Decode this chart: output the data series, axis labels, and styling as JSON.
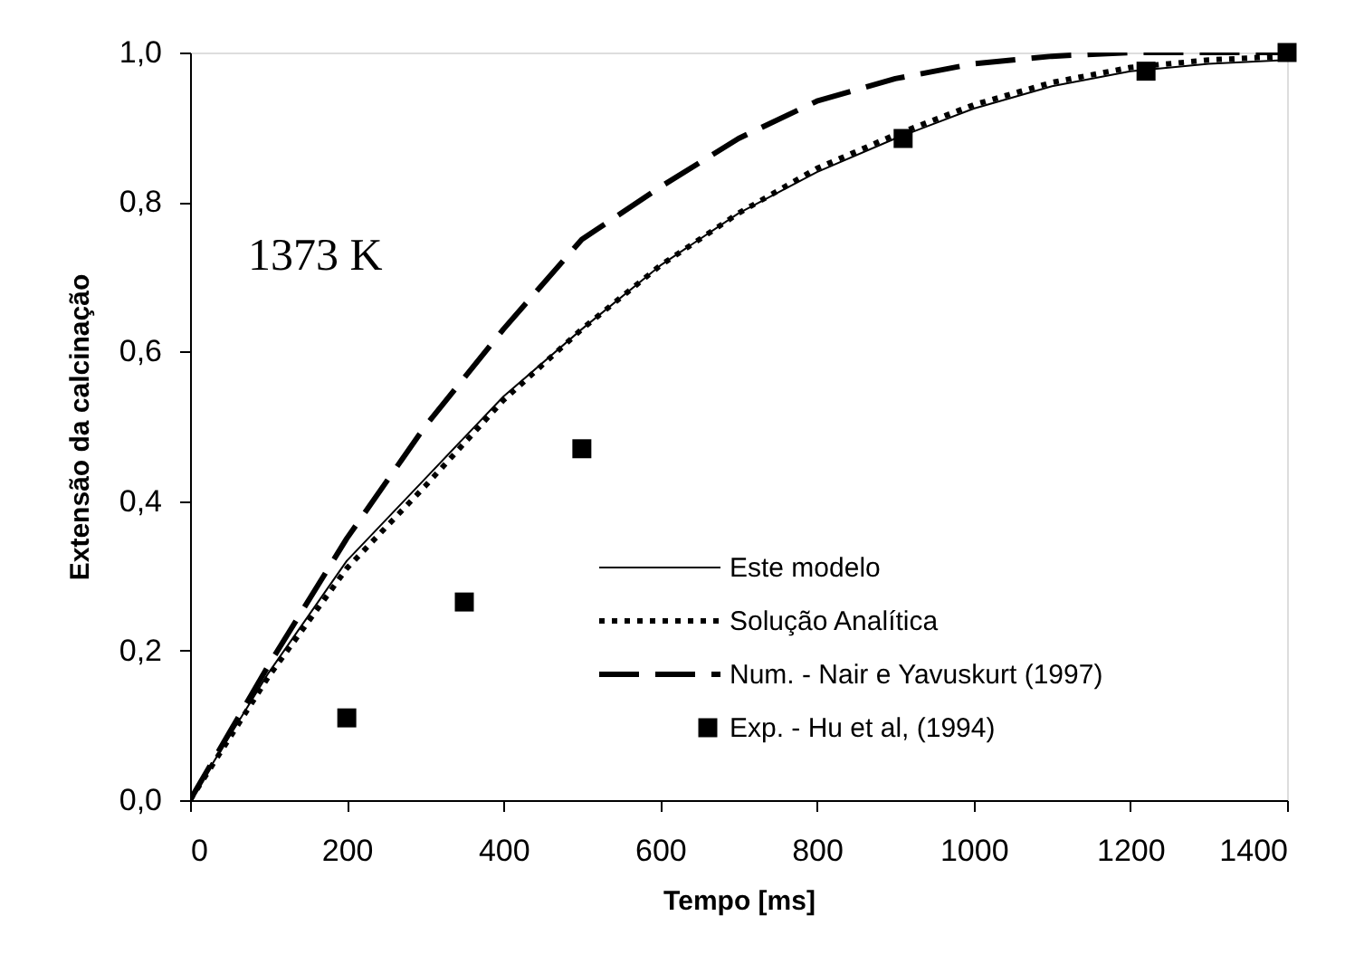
{
  "chart_data": {
    "type": "line",
    "xlabel": "Tempo [ms]",
    "ylabel": "Extensão da calcinação",
    "annotations": [
      "1373 K"
    ],
    "xlim": [
      0,
      1400
    ],
    "xticks": [
      0,
      200,
      400,
      600,
      800,
      1000,
      1200,
      1400
    ],
    "ylim": [
      0,
      1
    ],
    "yticks": [
      {
        "value": 0,
        "label": "0,0"
      },
      {
        "value": 0.2,
        "label": "0,2"
      },
      {
        "value": 0.4,
        "label": "0,4"
      },
      {
        "value": 0.6,
        "label": "0,6"
      },
      {
        "value": 0.8,
        "label": "0,8"
      },
      {
        "value": 1,
        "label": "1,0"
      }
    ],
    "grid": false,
    "legend": "bottom right",
    "series": [
      {
        "name": "Este modelo",
        "color": "#000000",
        "line_style": "solid",
        "x": [
          0,
          100,
          200,
          300,
          400,
          500,
          600,
          700,
          800,
          900,
          1000,
          1100,
          1200,
          1300,
          1400
        ],
        "values": [
          0,
          0.17,
          0.32,
          0.43,
          0.54,
          0.63,
          0.715,
          0.785,
          0.84,
          0.885,
          0.925,
          0.955,
          0.975,
          0.985,
          0.99
        ]
      },
      {
        "name": "Solução Analítica",
        "color": "#000000",
        "line_style": "dotted",
        "x": [
          0,
          100,
          200,
          300,
          400,
          500,
          600,
          700,
          800,
          900,
          1000,
          1100,
          1200,
          1300,
          1400
        ],
        "values": [
          0,
          0.165,
          0.31,
          0.42,
          0.535,
          0.63,
          0.715,
          0.785,
          0.845,
          0.89,
          0.93,
          0.96,
          0.98,
          0.99,
          0.995
        ]
      },
      {
        "name": "Num. - Nair e Yavuskurt (1997)",
        "color": "#000000",
        "line_style": "dashed",
        "x": [
          0,
          100,
          200,
          300,
          400,
          500,
          600,
          700,
          800,
          900,
          1000,
          1100,
          1200,
          1300,
          1400
        ],
        "values": [
          0,
          0.18,
          0.35,
          0.5,
          0.63,
          0.75,
          0.82,
          0.885,
          0.935,
          0.965,
          0.985,
          0.995,
          1.0,
          1.0,
          1.0
        ]
      },
      {
        "name": "Exp. - Hu et al, (1994)",
        "color": "#000000",
        "type": "scatter",
        "marker": "square",
        "x": [
          200,
          350,
          500,
          910,
          1220,
          1400
        ],
        "values": [
          0.11,
          0.265,
          0.47,
          0.885,
          0.975,
          1.0
        ]
      }
    ]
  }
}
